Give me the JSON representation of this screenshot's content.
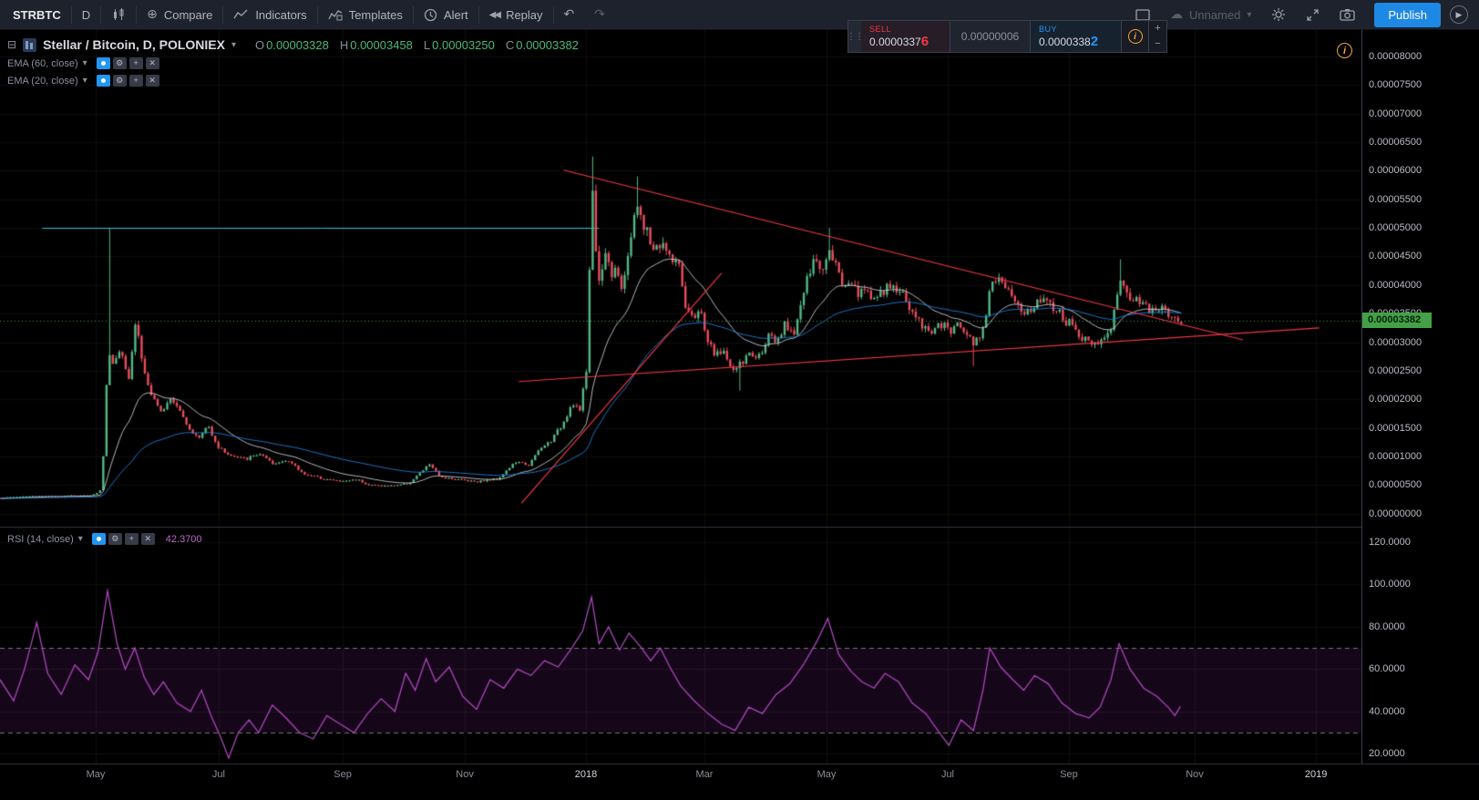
{
  "toolbar": {
    "symbol": "STRBTC",
    "interval": "D",
    "compare": "Compare",
    "indicators": "Indicators",
    "templates": "Templates",
    "alert": "Alert",
    "replay": "Replay",
    "layout_name": "Unnamed",
    "publish": "Publish"
  },
  "chart_header": {
    "title": "Stellar / Bitcoin, D, POLONIEX",
    "o_label": "O",
    "o_value": "0.00003328",
    "h_label": "H",
    "h_value": "0.00003458",
    "l_label": "L",
    "l_value": "0.00003250",
    "c_label": "C",
    "c_value": "0.00003382"
  },
  "legends": {
    "ema60": "EMA (60, close)",
    "ema20": "EMA (20, close)",
    "rsi": "RSI (14, close)",
    "rsi_value": "42.3700"
  },
  "order_panel": {
    "sell_label": "SELL",
    "sell_price_main": "0.0000337",
    "sell_price_last": "6",
    "spread": "0.00000006",
    "buy_label": "BUY",
    "buy_price_main": "0.0000338",
    "buy_price_last": "2"
  },
  "price_axis": {
    "current": "0.00003382",
    "labels": [
      "0.00008000",
      "0.00007500",
      "0.00007000",
      "0.00006500",
      "0.00006000",
      "0.00005500",
      "0.00005000",
      "0.00004500",
      "0.00004000",
      "0.00003500",
      "0.00003000",
      "0.00002500",
      "0.00002000",
      "0.00001500",
      "0.00001000",
      "0.00000500",
      "0.00000000"
    ]
  },
  "rsi_axis": {
    "labels": [
      "120.0000",
      "100.0000",
      "80.0000",
      "60.0000",
      "40.0000",
      "20.0000"
    ]
  },
  "time_axis": {
    "labels": [
      {
        "text": "May",
        "pos": 0.0703,
        "major": false
      },
      {
        "text": "Jul",
        "pos": 0.1606,
        "major": false
      },
      {
        "text": "Sep",
        "pos": 0.2517,
        "major": false
      },
      {
        "text": "Nov",
        "pos": 0.3414,
        "major": false
      },
      {
        "text": "2018",
        "pos": 0.4304,
        "major": true
      },
      {
        "text": "Mar",
        "pos": 0.5174,
        "major": false
      },
      {
        "text": "May",
        "pos": 0.6071,
        "major": false
      },
      {
        "text": "Jul",
        "pos": 0.6961,
        "major": false
      },
      {
        "text": "Sep",
        "pos": 0.7851,
        "major": false
      },
      {
        "text": "Nov",
        "pos": 0.8775,
        "major": false
      },
      {
        "text": "2019",
        "pos": 0.9666,
        "major": true
      }
    ]
  },
  "chart_data": {
    "type": "candlestick",
    "title": "Stellar / Bitcoin, D, POLONIEX",
    "symbol": "STRBTC",
    "exchange": "POLONIEX",
    "interval": "D",
    "ohlc": {
      "open": 3.328e-05,
      "high": 3.458e-05,
      "low": 3.25e-05,
      "close": 3.382e-05
    },
    "last_close": 3.382e-05,
    "ylim": [
      0,
      8e-05
    ],
    "price_unit_satoshi": 1e-08,
    "x_end": 0.867,
    "price_path_sats": [
      [
        0,
        270
      ],
      [
        0.01,
        290
      ],
      [
        0.02,
        300
      ],
      [
        0.03,
        310
      ],
      [
        0.04,
        300
      ],
      [
        0.05,
        320
      ],
      [
        0.06,
        310
      ],
      [
        0.068,
        330
      ],
      [
        0.074,
        420
      ],
      [
        0.079,
        2950
      ],
      [
        0.082,
        2600
      ],
      [
        0.088,
        2900
      ],
      [
        0.094,
        2400
      ],
      [
        0.099,
        3400
      ],
      [
        0.105,
        2500
      ],
      [
        0.11,
        2100
      ],
      [
        0.117,
        1750
      ],
      [
        0.124,
        2050
      ],
      [
        0.13,
        1900
      ],
      [
        0.137,
        1550
      ],
      [
        0.145,
        1300
      ],
      [
        0.152,
        1550
      ],
      [
        0.16,
        1150
      ],
      [
        0.17,
        1000
      ],
      [
        0.18,
        950
      ],
      [
        0.19,
        1050
      ],
      [
        0.2,
        850
      ],
      [
        0.21,
        950
      ],
      [
        0.222,
        700
      ],
      [
        0.235,
        620
      ],
      [
        0.25,
        560
      ],
      [
        0.262,
        600
      ],
      [
        0.27,
        500
      ],
      [
        0.285,
        480
      ],
      [
        0.3,
        530
      ],
      [
        0.315,
        870
      ],
      [
        0.322,
        650
      ],
      [
        0.335,
        600
      ],
      [
        0.35,
        560
      ],
      [
        0.365,
        610
      ],
      [
        0.378,
        900
      ],
      [
        0.388,
        850
      ],
      [
        0.395,
        1100
      ],
      [
        0.405,
        1300
      ],
      [
        0.412,
        1550
      ],
      [
        0.42,
        1950
      ],
      [
        0.4255,
        1800
      ],
      [
        0.43,
        2500
      ],
      [
        0.4345,
        5900
      ],
      [
        0.437,
        4500
      ],
      [
        0.44,
        4050
      ],
      [
        0.444,
        4600
      ],
      [
        0.448,
        4200
      ],
      [
        0.452,
        4400
      ],
      [
        0.456,
        3950
      ],
      [
        0.46,
        4300
      ],
      [
        0.4665,
        5550
      ],
      [
        0.471,
        5000
      ],
      [
        0.475,
        4900
      ],
      [
        0.48,
        4600
      ],
      [
        0.486,
        4750
      ],
      [
        0.492,
        4400
      ],
      [
        0.497,
        4500
      ],
      [
        0.502,
        3600
      ],
      [
        0.508,
        3400
      ],
      [
        0.513,
        3600
      ],
      [
        0.518,
        3100
      ],
      [
        0.524,
        2750
      ],
      [
        0.53,
        2900
      ],
      [
        0.536,
        2500
      ],
      [
        0.543,
        2600
      ],
      [
        0.55,
        2800
      ],
      [
        0.556,
        2700
      ],
      [
        0.563,
        3100
      ],
      [
        0.57,
        2950
      ],
      [
        0.576,
        3300
      ],
      [
        0.583,
        3200
      ],
      [
        0.59,
        3900
      ],
      [
        0.597,
        4400
      ],
      [
        0.604,
        4300
      ],
      [
        0.608,
        4750
      ],
      [
        0.613,
        4400
      ],
      [
        0.618,
        4000
      ],
      [
        0.624,
        4100
      ],
      [
        0.63,
        3850
      ],
      [
        0.637,
        3900
      ],
      [
        0.643,
        3750
      ],
      [
        0.65,
        3900
      ],
      [
        0.656,
        4000
      ],
      [
        0.663,
        3800
      ],
      [
        0.67,
        3500
      ],
      [
        0.676,
        3300
      ],
      [
        0.683,
        3200
      ],
      [
        0.69,
        3300
      ],
      [
        0.697,
        3200
      ],
      [
        0.703,
        3300
      ],
      [
        0.71,
        3200
      ],
      [
        0.715,
        2950
      ],
      [
        0.722,
        3300
      ],
      [
        0.727,
        4050
      ],
      [
        0.732,
        4100
      ],
      [
        0.737,
        3900
      ],
      [
        0.743,
        3800
      ],
      [
        0.749,
        3600
      ],
      [
        0.755,
        3500
      ],
      [
        0.762,
        3700
      ],
      [
        0.768,
        3850
      ],
      [
        0.774,
        3600
      ],
      [
        0.78,
        3400
      ],
      [
        0.786,
        3300
      ],
      [
        0.792,
        3100
      ],
      [
        0.798,
        3000
      ],
      [
        0.804,
        3050
      ],
      [
        0.81,
        3000
      ],
      [
        0.816,
        3300
      ],
      [
        0.822,
        4100
      ],
      [
        0.827,
        3900
      ],
      [
        0.832,
        3700
      ],
      [
        0.838,
        3750
      ],
      [
        0.843,
        3600
      ],
      [
        0.849,
        3650
      ],
      [
        0.855,
        3500
      ],
      [
        0.861,
        3450
      ],
      [
        0.867,
        3382
      ]
    ],
    "wicks": [
      {
        "x": 0.079,
        "high": 5000
      },
      {
        "x": 0.4345,
        "high": 6250
      },
      {
        "x": 0.4665,
        "high": 5900
      },
      {
        "x": 0.608,
        "high": 5000
      },
      {
        "x": 0.822,
        "high": 4450
      },
      {
        "x": 0.543,
        "low": 2150
      },
      {
        "x": 0.715,
        "low": 2580
      }
    ],
    "trendlines": [
      {
        "x1": 0.414,
        "p1": 6010,
        "x2": 0.913,
        "p2": 3040
      },
      {
        "x1": 0.381,
        "p1": 2310,
        "x2": 0.969,
        "p2": 3250
      },
      {
        "x1": 0.383,
        "p1": 180,
        "x2": 0.53,
        "p2": 4210
      }
    ],
    "levels": [
      {
        "type": "horizontal",
        "p": 5000,
        "x1": 0.031,
        "x2": 0.44,
        "style": "solid"
      },
      {
        "type": "last-price",
        "p": 3382,
        "style": "dotted"
      }
    ],
    "indicators": {
      "ema_fast_period": 20,
      "ema_slow_period": 60,
      "rsi_period": 14
    },
    "rsi": {
      "period": 14,
      "current": 42.37,
      "upper_band": 70,
      "lower_band": 30,
      "ylim": [
        20,
        120
      ],
      "points": [
        [
          0,
          55
        ],
        [
          0.01,
          45
        ],
        [
          0.018,
          60
        ],
        [
          0.027,
          82
        ],
        [
          0.035,
          58
        ],
        [
          0.045,
          48
        ],
        [
          0.055,
          62
        ],
        [
          0.065,
          55
        ],
        [
          0.072,
          68
        ],
        [
          0.079,
          97
        ],
        [
          0.086,
          72
        ],
        [
          0.092,
          60
        ],
        [
          0.099,
          70
        ],
        [
          0.106,
          56
        ],
        [
          0.113,
          48
        ],
        [
          0.12,
          54
        ],
        [
          0.13,
          44
        ],
        [
          0.14,
          40
        ],
        [
          0.148,
          50
        ],
        [
          0.155,
          38
        ],
        [
          0.162,
          28
        ],
        [
          0.168,
          18
        ],
        [
          0.175,
          30
        ],
        [
          0.183,
          36
        ],
        [
          0.19,
          30
        ],
        [
          0.2,
          43
        ],
        [
          0.21,
          37
        ],
        [
          0.22,
          30
        ],
        [
          0.23,
          27
        ],
        [
          0.24,
          38
        ],
        [
          0.25,
          34
        ],
        [
          0.26,
          30
        ],
        [
          0.27,
          39
        ],
        [
          0.28,
          46
        ],
        [
          0.29,
          40
        ],
        [
          0.298,
          58
        ],
        [
          0.305,
          50
        ],
        [
          0.313,
          65
        ],
        [
          0.32,
          54
        ],
        [
          0.33,
          61
        ],
        [
          0.34,
          47
        ],
        [
          0.35,
          41
        ],
        [
          0.36,
          55
        ],
        [
          0.37,
          51
        ],
        [
          0.38,
          60
        ],
        [
          0.39,
          57
        ],
        [
          0.4,
          64
        ],
        [
          0.41,
          61
        ],
        [
          0.42,
          70
        ],
        [
          0.428,
          78
        ],
        [
          0.4345,
          94
        ],
        [
          0.44,
          72
        ],
        [
          0.447,
          80
        ],
        [
          0.455,
          69
        ],
        [
          0.462,
          77
        ],
        [
          0.47,
          71
        ],
        [
          0.478,
          64
        ],
        [
          0.485,
          70
        ],
        [
          0.492,
          61
        ],
        [
          0.5,
          52
        ],
        [
          0.51,
          45
        ],
        [
          0.52,
          39
        ],
        [
          0.53,
          34
        ],
        [
          0.54,
          31
        ],
        [
          0.55,
          42
        ],
        [
          0.56,
          39
        ],
        [
          0.57,
          48
        ],
        [
          0.58,
          53
        ],
        [
          0.59,
          62
        ],
        [
          0.6,
          73
        ],
        [
          0.608,
          84
        ],
        [
          0.616,
          67
        ],
        [
          0.625,
          59
        ],
        [
          0.633,
          54
        ],
        [
          0.642,
          51
        ],
        [
          0.65,
          58
        ],
        [
          0.66,
          54
        ],
        [
          0.67,
          44
        ],
        [
          0.68,
          39
        ],
        [
          0.69,
          30
        ],
        [
          0.697,
          24
        ],
        [
          0.706,
          36
        ],
        [
          0.715,
          31
        ],
        [
          0.722,
          50
        ],
        [
          0.727,
          70
        ],
        [
          0.735,
          61
        ],
        [
          0.744,
          55
        ],
        [
          0.752,
          50
        ],
        [
          0.76,
          57
        ],
        [
          0.77,
          53
        ],
        [
          0.78,
          44
        ],
        [
          0.79,
          39
        ],
        [
          0.8,
          37
        ],
        [
          0.808,
          42
        ],
        [
          0.816,
          55
        ],
        [
          0.822,
          72
        ],
        [
          0.83,
          60
        ],
        [
          0.84,
          51
        ],
        [
          0.85,
          47
        ],
        [
          0.858,
          42
        ],
        [
          0.863,
          38
        ],
        [
          0.867,
          42.37
        ]
      ]
    },
    "colors": {
      "up": "#53b987",
      "down": "#eb4d5c",
      "ema_fast": "#d1d4dc",
      "ema_slow": "#1e88e5",
      "trend": "#f23645",
      "level": "#2bc4d9",
      "last_price": "#43a047",
      "rsi_line": "#ab47bc",
      "rsi_band_fill": "rgba(156,39,176,0.14)",
      "rsi_band_line": "rgba(255,255,255,0.45)"
    }
  }
}
